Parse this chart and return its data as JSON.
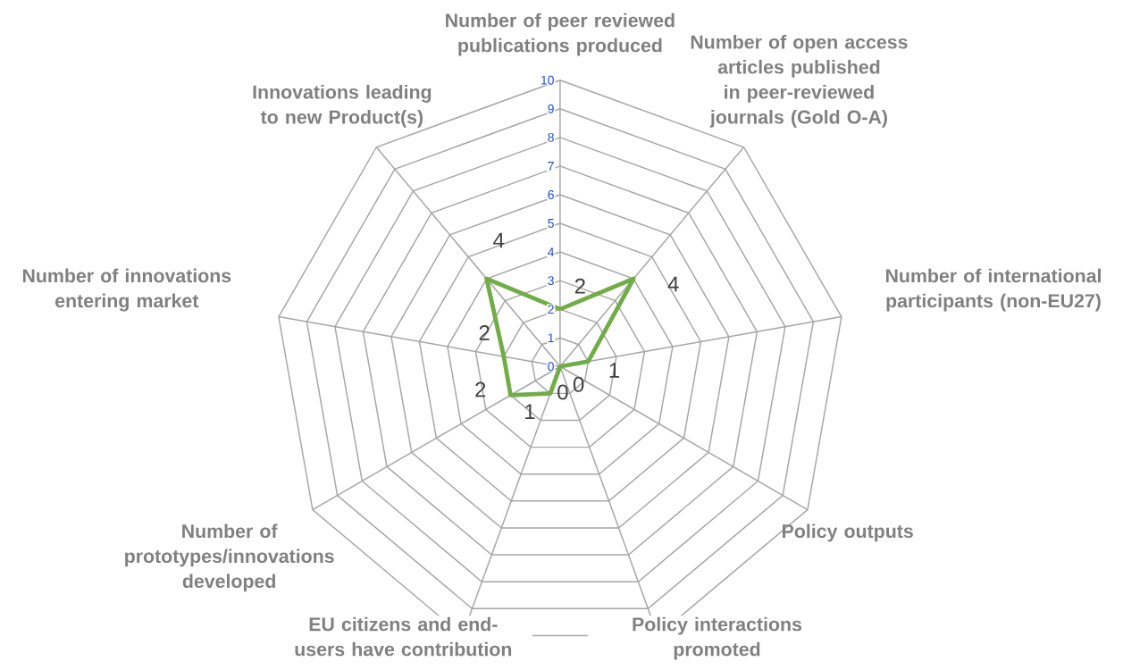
{
  "chart_data": {
    "type": "radar",
    "categories": [
      "Number of peer reviewed publications produced",
      "Number of open access articles published in peer-reviewed journals (Gold O-A)",
      "Number of international participants (non-EU27)",
      "Policy outputs",
      "Policy interactions promoted",
      "EU citizens and end-users have contribution",
      "Number of prototypes/innovations developed",
      "Number of innovations entering market",
      "Innovations leading to new Product(s)"
    ],
    "series": [
      {
        "color": "#70ad47",
        "values": [
          2,
          4,
          1,
          0,
          0,
          1,
          2,
          2,
          4
        ]
      }
    ],
    "ylim": [
      0,
      10
    ],
    "yticks": [
      0,
      1,
      2,
      3,
      4,
      5,
      6,
      7,
      8,
      9,
      10
    ],
    "grid": true,
    "data_labels": true
  }
}
